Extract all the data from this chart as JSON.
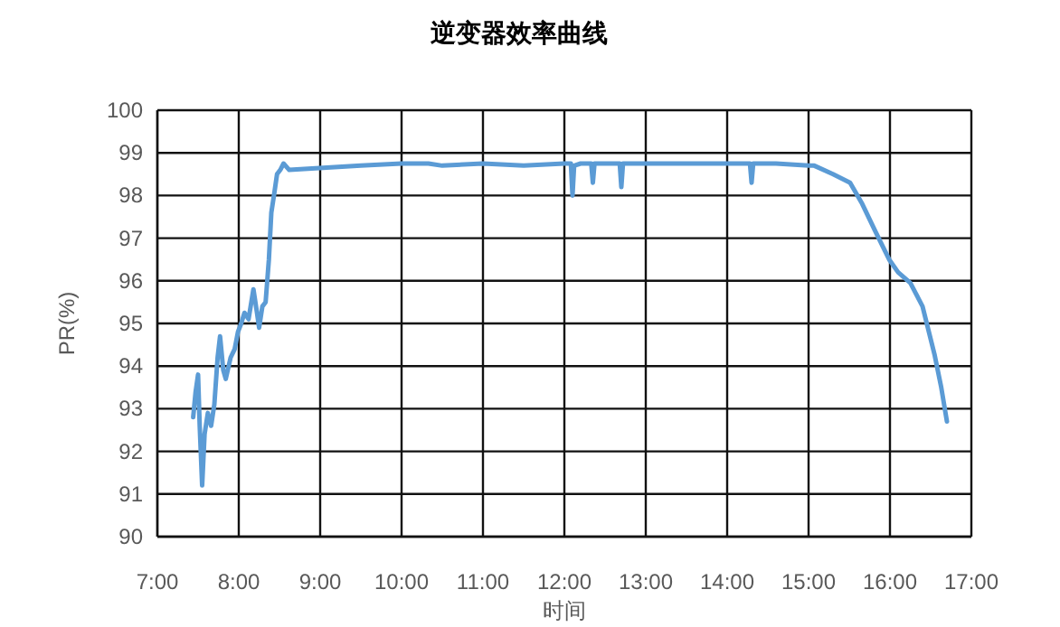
{
  "chart_data": {
    "type": "line",
    "title": "逆变器效率曲线",
    "xlabel": "时间",
    "ylabel": "PR(%)",
    "x": [
      7.44,
      7.47,
      7.5,
      7.52,
      7.55,
      7.58,
      7.62,
      7.66,
      7.7,
      7.74,
      7.77,
      7.81,
      7.84,
      7.9,
      7.95,
      7.99,
      8.03,
      8.07,
      8.12,
      8.18,
      8.22,
      8.25,
      8.29,
      8.33,
      8.37,
      8.4,
      8.44,
      8.47,
      8.51,
      8.55,
      8.62,
      9.5,
      10.0,
      10.33,
      10.5,
      11.0,
      11.5,
      12.0,
      12.08,
      12.1,
      12.12,
      12.2,
      12.33,
      12.35,
      12.37,
      12.6,
      12.68,
      12.7,
      12.72,
      13.0,
      13.5,
      14.0,
      14.28,
      14.3,
      14.32,
      14.6,
      15.0,
      15.07,
      15.3,
      15.51,
      15.66,
      15.81,
      15.99,
      16.1,
      16.25,
      16.4,
      16.55,
      16.63,
      16.7
    ],
    "series": [
      {
        "color": "#5b9bd5",
        "values": [
          92.8,
          93.4,
          93.8,
          92.6,
          91.2,
          92.4,
          92.9,
          92.6,
          93.1,
          94.2,
          94.7,
          93.9,
          93.7,
          94.2,
          94.4,
          94.8,
          95.0,
          95.25,
          95.1,
          95.8,
          95.3,
          94.9,
          95.4,
          95.5,
          96.5,
          97.6,
          98.1,
          98.5,
          98.6,
          98.75,
          98.6,
          98.7,
          98.75,
          98.75,
          98.7,
          98.75,
          98.7,
          98.75,
          98.75,
          98.0,
          98.7,
          98.75,
          98.75,
          98.3,
          98.75,
          98.75,
          98.75,
          98.2,
          98.75,
          98.75,
          98.75,
          98.75,
          98.75,
          98.3,
          98.75,
          98.75,
          98.7,
          98.7,
          98.5,
          98.3,
          97.8,
          97.2,
          96.5,
          96.2,
          95.95,
          95.4,
          94.25,
          93.5,
          92.7
        ]
      }
    ],
    "xlim": [
      7,
      17
    ],
    "ylim": [
      90,
      100
    ],
    "xticks": [
      {
        "value": 7,
        "label": "7:00"
      },
      {
        "value": 8,
        "label": "8:00"
      },
      {
        "value": 9,
        "label": "9:00"
      },
      {
        "value": 10,
        "label": "10:00"
      },
      {
        "value": 11,
        "label": "11:00"
      },
      {
        "value": 12,
        "label": "12:00"
      },
      {
        "value": 13,
        "label": "13:00"
      },
      {
        "value": 14,
        "label": "14:00"
      },
      {
        "value": 15,
        "label": "15:00"
      },
      {
        "value": 16,
        "label": "16:00"
      },
      {
        "value": 17,
        "label": "17:00"
      }
    ],
    "yticks": [
      90,
      91,
      92,
      93,
      94,
      95,
      96,
      97,
      98,
      99,
      100
    ],
    "grid": true,
    "marker": "none",
    "line_style": "solid"
  }
}
